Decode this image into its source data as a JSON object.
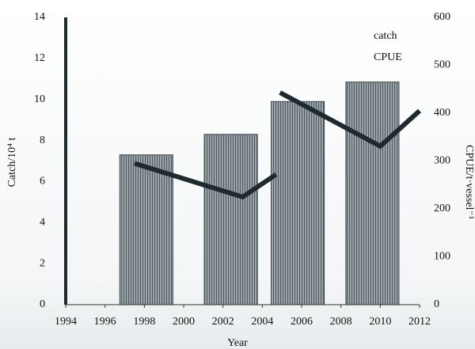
{
  "chart_data": {
    "type": "bar_line",
    "x_label": "Year",
    "y_label": "Catch/10⁴ t",
    "y2_label": "CPUE/t·vessel⁻¹",
    "xlim": [
      1994,
      2012
    ],
    "xticks": [
      1994,
      1996,
      1998,
      2000,
      2002,
      2004,
      2006,
      2008,
      2010,
      2012
    ],
    "ylim": [
      0,
      14
    ],
    "yticks": [
      0,
      2,
      4,
      6,
      8,
      10,
      12,
      14
    ],
    "y2lim": [
      0,
      600
    ],
    "y2ticks": [
      0,
      100,
      200,
      300,
      400,
      500,
      600
    ],
    "series": [
      {
        "name": "catch",
        "type": "bar",
        "color": "#8c959b",
        "x": [
          1998.1,
          2002.4,
          2005.8,
          2009.6
        ],
        "values": [
          7.3,
          8.3,
          9.9,
          10.85
        ]
      },
      {
        "name": "CPUE",
        "type": "line",
        "axis": "y2",
        "color": "#1e2a30",
        "x": [
          1997.5,
          2003,
          2004.7,
          2004.8,
          2004.9,
          2010,
          2012
        ],
        "values": [
          295,
          225,
          272,
          null,
          443,
          331,
          405
        ]
      }
    ]
  }
}
